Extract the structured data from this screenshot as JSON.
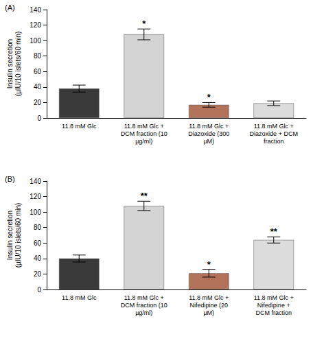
{
  "chart_data": [
    {
      "type": "bar",
      "title": "(A)",
      "y_label": "Insulin secretion\n(µIU/10 islets/60 min)",
      "categories": [
        "11.8 mM Glc",
        "11.8 mM Glc +\nDCM fraction (10\nµg/ml)",
        "11.8 mM Glc +\nDiazoxide (300\nµM)",
        "11.8 mM Glc +\nDiazoxide + DCM\nfraction"
      ],
      "values": [
        38,
        108,
        17,
        19
      ],
      "errors": [
        4.5,
        7,
        3,
        3
      ],
      "significance": [
        null,
        "*",
        "*",
        null
      ],
      "colors": [
        "#3a3a3a",
        "#d4d4d4",
        "#b3735a",
        "#dcdcdc"
      ],
      "ylim": [
        0,
        140
      ],
      "yticks": [
        0,
        20,
        40,
        60,
        80,
        100,
        120,
        140
      ],
      "grid": false
    },
    {
      "type": "bar",
      "title": "(B)",
      "y_label": "Insulin secretion\n(µIU/10 islets/60 min)",
      "categories": [
        "11.8 mM Glc",
        "11.8 mM Glc +\nDCM fraction (10\nµg/ml)",
        "11.8 mM Glc +\nNifedipine (20\nµM)",
        "11.8 mM Glc +\nNifedipine +\nDCM fraction"
      ],
      "values": [
        40,
        108,
        21,
        64
      ],
      "errors": [
        4.5,
        6,
        5,
        4
      ],
      "significance": [
        null,
        "**",
        "*",
        "**"
      ],
      "colors": [
        "#3a3a3a",
        "#d4d4d4",
        "#b3735a",
        "#dcdcdc"
      ],
      "ylim": [
        0,
        140
      ],
      "yticks": [
        0,
        20,
        40,
        60,
        80,
        100,
        120,
        140
      ],
      "grid": false
    }
  ]
}
